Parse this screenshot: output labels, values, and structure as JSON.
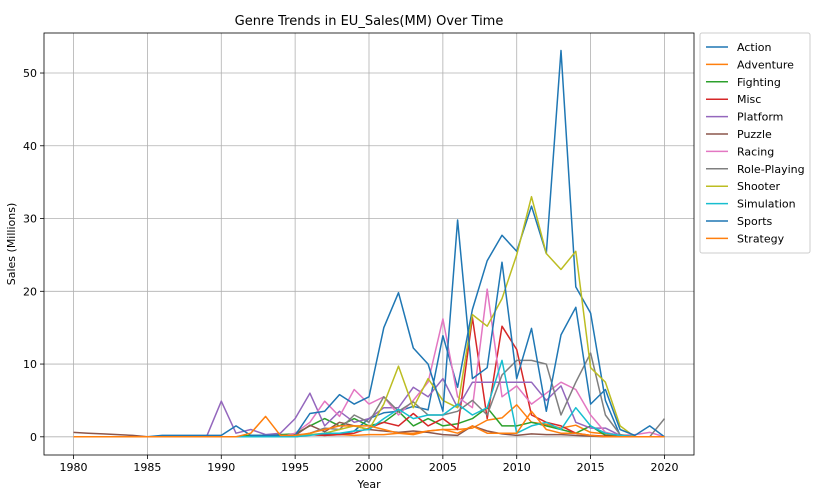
{
  "chart_data": {
    "type": "line",
    "title": "Genre Trends in EU_Sales(MM) Over Time",
    "xlabel": "Year",
    "ylabel": "Sales (Millions)",
    "xlim": [
      1978,
      2022
    ],
    "ylim": [
      -2.5,
      55.5
    ],
    "xticks": [
      1980,
      1985,
      1990,
      1995,
      2000,
      2005,
      2010,
      2015,
      2020
    ],
    "yticks": [
      0,
      10,
      20,
      30,
      40,
      50
    ],
    "grid": true,
    "legend_position": "outside-right-top",
    "x": [
      1980,
      1981,
      1982,
      1983,
      1984,
      1985,
      1986,
      1987,
      1988,
      1989,
      1990,
      1991,
      1992,
      1993,
      1994,
      1995,
      1996,
      1997,
      1998,
      1999,
      2000,
      2001,
      2002,
      2003,
      2004,
      2005,
      2006,
      2007,
      2008,
      2009,
      2010,
      2011,
      2012,
      2013,
      2014,
      2015,
      2016,
      2017,
      2018,
      2019,
      2020
    ],
    "series": [
      {
        "name": "Action",
        "color": "#1f77b4",
        "values": [
          0.0,
          0.0,
          0.0,
          0.0,
          0.0,
          0.0,
          0.0,
          0.0,
          0.0,
          0.0,
          0.0,
          0.0,
          0.0,
          0.0,
          0.0,
          0.3,
          0.3,
          0.4,
          0.3,
          0.8,
          2.5,
          3.3,
          3.5,
          4.2,
          3.7,
          13.9,
          6.8,
          17.5,
          24.2,
          27.7,
          25.5,
          31.7,
          25.2,
          53.1,
          20.6,
          17.0,
          5.0,
          0.2,
          0.0,
          0.0,
          0.0
        ]
      },
      {
        "name": "Adventure",
        "color": "#ff7f0e",
        "values": [
          0.0,
          0.0,
          0.0,
          0.0,
          0.0,
          0.0,
          0.0,
          0.0,
          0.0,
          0.0,
          0.0,
          0.0,
          0.0,
          0.0,
          0.0,
          0.0,
          0.3,
          0.2,
          0.3,
          0.2,
          0.3,
          0.3,
          0.5,
          0.3,
          0.8,
          1.0,
          1.0,
          1.2,
          2.3,
          2.6,
          4.4,
          2.0,
          1.7,
          1.2,
          1.6,
          0.6,
          0.4,
          0.1,
          0.0,
          0.0,
          0.0
        ]
      },
      {
        "name": "Fighting",
        "color": "#2ca02c",
        "values": [
          0.0,
          0.0,
          0.0,
          0.0,
          0.0,
          0.0,
          0.0,
          0.0,
          0.0,
          0.0,
          0.0,
          0.0,
          0.2,
          0.2,
          0.3,
          0.4,
          1.5,
          2.5,
          1.5,
          2.5,
          1.5,
          2.0,
          3.5,
          1.5,
          2.5,
          1.5,
          1.8,
          2.5,
          4.0,
          1.5,
          1.5,
          2.0,
          1.5,
          1.0,
          0.5,
          1.5,
          0.2,
          0.0,
          0.0,
          0.0,
          0.0
        ]
      },
      {
        "name": "Misc",
        "color": "#d62728",
        "values": [
          0.0,
          0.0,
          0.0,
          0.0,
          0.0,
          0.0,
          0.0,
          0.0,
          0.0,
          0.0,
          0.0,
          0.0,
          0.0,
          0.0,
          0.0,
          0.0,
          0.3,
          0.2,
          0.3,
          0.5,
          1.2,
          2.0,
          1.5,
          3.2,
          1.5,
          2.5,
          1.0,
          16.4,
          2.5,
          15.2,
          12.0,
          3.0,
          2.0,
          1.5,
          0.5,
          0.2,
          0.1,
          0.0,
          0.0,
          0.0,
          0.0
        ]
      },
      {
        "name": "Platform",
        "color": "#9467bd",
        "values": [
          0.0,
          0.0,
          0.0,
          0.0,
          0.0,
          0.0,
          0.0,
          0.0,
          0.0,
          0.0,
          4.9,
          0.5,
          1.0,
          0.3,
          0.5,
          2.5,
          6.0,
          1.5,
          3.5,
          2.0,
          2.5,
          4.0,
          4.0,
          6.8,
          5.5,
          8.0,
          4.0,
          7.5,
          7.5,
          7.5,
          7.5,
          7.5,
          5.0,
          7.0,
          2.0,
          1.2,
          1.2,
          0.2,
          0.0,
          0.0,
          0.0
        ]
      },
      {
        "name": "Puzzle",
        "color": "#8c564b",
        "values": [
          0.6,
          0.5,
          0.4,
          0.3,
          0.2,
          0.0,
          0.0,
          0.0,
          0.0,
          0.0,
          0.0,
          0.0,
          0.0,
          0.0,
          0.0,
          0.2,
          1.6,
          0.7,
          2.0,
          1.5,
          1.0,
          0.8,
          0.6,
          0.8,
          0.6,
          0.3,
          0.2,
          1.5,
          0.8,
          0.4,
          0.2,
          0.4,
          0.3,
          0.3,
          0.2,
          0.1,
          0.0,
          0.0,
          0.0,
          0.0,
          0.0
        ]
      },
      {
        "name": "Racing",
        "color": "#e377c2",
        "values": [
          0.0,
          0.0,
          0.0,
          0.0,
          0.0,
          0.0,
          0.0,
          0.0,
          0.0,
          0.0,
          0.0,
          0.0,
          0.0,
          0.0,
          0.0,
          0.5,
          2.0,
          4.9,
          2.8,
          6.5,
          4.5,
          5.5,
          3.0,
          5.0,
          7.5,
          16.2,
          5.5,
          4.0,
          20.3,
          5.5,
          7.0,
          4.5,
          6.0,
          7.5,
          6.5,
          3.0,
          0.6,
          0.2,
          0.3,
          0.6,
          0.0
        ]
      },
      {
        "name": "Role-Playing",
        "color": "#7f7f7f",
        "values": [
          0.0,
          0.0,
          0.0,
          0.0,
          0.0,
          0.0,
          0.0,
          0.0,
          0.0,
          0.0,
          0.0,
          0.0,
          0.0,
          0.0,
          0.0,
          0.0,
          0.5,
          1.2,
          1.0,
          3.0,
          2.0,
          5.5,
          3.5,
          4.8,
          3.0,
          3.0,
          3.5,
          5.0,
          3.0,
          8.5,
          10.5,
          10.5,
          10.0,
          3.0,
          7.5,
          11.5,
          3.0,
          0.3,
          0.0,
          0.0,
          2.5
        ]
      },
      {
        "name": "Shooter",
        "color": "#bcbd22",
        "values": [
          0.0,
          0.0,
          0.0,
          0.0,
          0.0,
          0.0,
          0.0,
          0.0,
          0.0,
          0.0,
          0.0,
          0.0,
          0.0,
          0.0,
          0.0,
          0.0,
          0.3,
          0.5,
          1.0,
          1.5,
          1.0,
          4.5,
          9.7,
          4.0,
          8.0,
          5.0,
          4.0,
          16.8,
          15.2,
          19.0,
          25.0,
          33.0,
          25.2,
          23.0,
          25.5,
          9.5,
          7.5,
          1.5,
          0.0,
          0.0,
          0.0
        ]
      },
      {
        "name": "Simulation",
        "color": "#17becf",
        "values": [
          0.0,
          0.0,
          0.0,
          0.0,
          0.0,
          0.0,
          0.0,
          0.0,
          0.0,
          0.0,
          0.0,
          0.0,
          0.0,
          0.0,
          0.0,
          0.0,
          0.2,
          0.5,
          0.5,
          0.8,
          1.0,
          2.5,
          3.8,
          2.5,
          3.0,
          3.0,
          4.5,
          3.0,
          4.0,
          10.5,
          0.5,
          1.5,
          2.0,
          1.0,
          4.0,
          1.5,
          0.5,
          0.2,
          0.0,
          0.0,
          0.0
        ]
      },
      {
        "name": "Sports",
        "color": "#1f77b4",
        "values": [
          0.0,
          0.0,
          0.0,
          0.0,
          0.0,
          0.0,
          0.2,
          0.2,
          0.2,
          0.2,
          0.2,
          1.5,
          0.2,
          0.2,
          0.2,
          0.2,
          3.2,
          3.5,
          5.8,
          4.5,
          5.5,
          15.0,
          19.8,
          12.2,
          10.0,
          3.5,
          29.8,
          8.0,
          9.5,
          24.0,
          8.0,
          14.9,
          3.5,
          14.0,
          17.8,
          4.5,
          6.5,
          1.0,
          0.2,
          1.5,
          0.0
        ]
      },
      {
        "name": "Strategy",
        "color": "#ff7f0e",
        "values": [
          0.0,
          0.0,
          0.0,
          0.0,
          0.0,
          0.0,
          0.0,
          0.0,
          0.0,
          0.0,
          0.0,
          0.0,
          0.5,
          2.8,
          0.2,
          0.2,
          0.5,
          1.0,
          1.5,
          1.5,
          1.5,
          1.0,
          0.5,
          0.5,
          0.8,
          1.0,
          0.5,
          1.5,
          0.5,
          0.5,
          0.5,
          3.5,
          1.0,
          0.5,
          0.5,
          0.2,
          0.0,
          0.0,
          0.0,
          0.0,
          0.0
        ]
      }
    ]
  }
}
